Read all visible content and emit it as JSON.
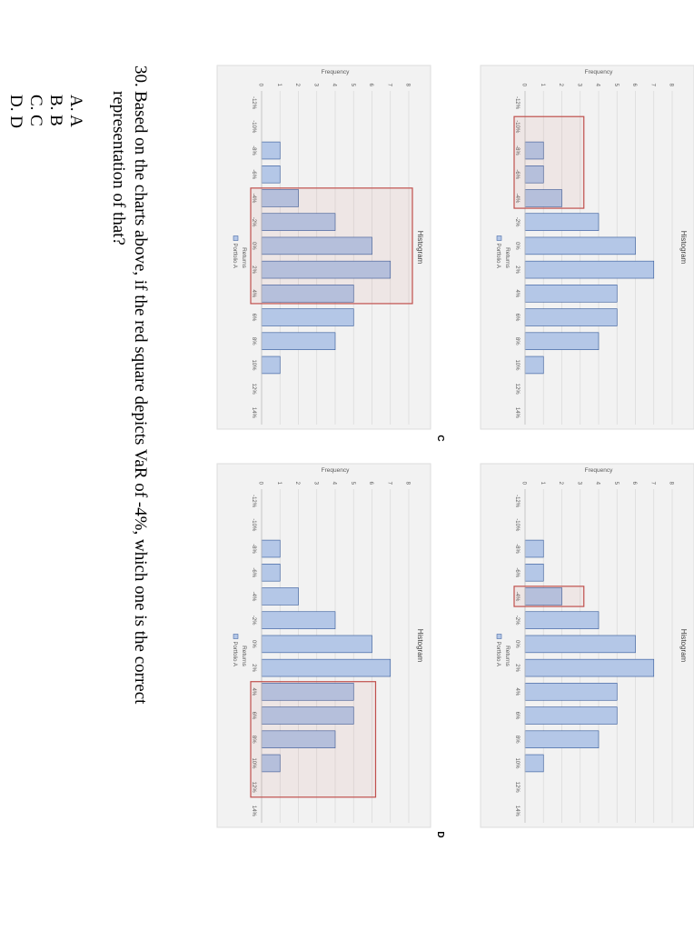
{
  "colors": {
    "bar_fill": "#b4c7e7",
    "bar_stroke": "#2f5597",
    "highlight": "#c0504d",
    "panel_bg": "#f2f2f2",
    "grid": "#d9d9d9"
  },
  "panel_captions": [
    "C",
    "D"
  ],
  "chart_data": [
    {
      "id": "A",
      "type": "bar",
      "title": "Histogram",
      "xlabel": "Returns",
      "ylabel": "Frequency",
      "categories": [
        "-12%",
        "-10%",
        "-8%",
        "-6%",
        "-4%",
        "-2%",
        "0%",
        "2%",
        "4%",
        "6%",
        "8%",
        "10%",
        "12%",
        "14%"
      ],
      "series": [
        {
          "name": "Portfolio A",
          "values": [
            0,
            0,
            1,
            1,
            2,
            4,
            6,
            7,
            5,
            5,
            4,
            1,
            0,
            0
          ]
        }
      ],
      "ylim": [
        0,
        8
      ],
      "yticks": [
        0,
        1,
        2,
        3,
        4,
        5,
        6,
        7,
        8
      ],
      "legend": "Portfolio A",
      "highlight_categories": [
        "-10%",
        "-8%",
        "-6%",
        "-4%"
      ]
    },
    {
      "id": "B",
      "type": "bar",
      "title": "Histogram",
      "xlabel": "Returns",
      "ylabel": "Frequency",
      "categories": [
        "-12%",
        "-10%",
        "-8%",
        "-6%",
        "-4%",
        "-2%",
        "0%",
        "2%",
        "4%",
        "6%",
        "8%",
        "10%",
        "12%",
        "14%"
      ],
      "series": [
        {
          "name": "Portfolio A",
          "values": [
            0,
            0,
            1,
            1,
            2,
            4,
            6,
            7,
            5,
            5,
            4,
            1,
            0,
            0
          ]
        }
      ],
      "ylim": [
        0,
        8
      ],
      "yticks": [
        0,
        1,
        2,
        3,
        4,
        5,
        6,
        7,
        8
      ],
      "legend": "Portfolio A",
      "highlight_categories": [
        "-4%"
      ]
    },
    {
      "id": "C",
      "type": "bar",
      "title": "Histogram",
      "xlabel": "Returns",
      "ylabel": "Frequency",
      "categories": [
        "-12%",
        "-10%",
        "-8%",
        "-6%",
        "-4%",
        "-2%",
        "0%",
        "2%",
        "4%",
        "6%",
        "8%",
        "10%",
        "12%",
        "14%"
      ],
      "series": [
        {
          "name": "Portfolio A",
          "values": [
            0,
            0,
            1,
            1,
            2,
            4,
            6,
            7,
            5,
            5,
            4,
            1,
            0,
            0
          ]
        }
      ],
      "ylim": [
        0,
        8
      ],
      "yticks": [
        0,
        1,
        2,
        3,
        4,
        5,
        6,
        7,
        8
      ],
      "legend": "Portfolio A",
      "highlight_categories": [
        "-4%",
        "-2%",
        "0%",
        "2%",
        "4%"
      ]
    },
    {
      "id": "D",
      "type": "bar",
      "title": "Histogram",
      "xlabel": "Returns",
      "ylabel": "Frequency",
      "categories": [
        "-12%",
        "-10%",
        "-8%",
        "-6%",
        "-4%",
        "-2%",
        "0%",
        "2%",
        "4%",
        "6%",
        "8%",
        "10%",
        "12%",
        "14%"
      ],
      "series": [
        {
          "name": "Portfolio A",
          "values": [
            0,
            0,
            1,
            1,
            2,
            4,
            6,
            7,
            5,
            5,
            4,
            1,
            0,
            0
          ]
        }
      ],
      "ylim": [
        0,
        8
      ],
      "yticks": [
        0,
        1,
        2,
        3,
        4,
        5,
        6,
        7,
        8
      ],
      "legend": "Portfolio A",
      "highlight_categories": [
        "4%",
        "6%",
        "8%",
        "10%",
        "12%"
      ]
    }
  ],
  "question": {
    "number": "30.",
    "line1": "Based on the charts above, if the red square depicts VaR of -4%, which one is the correct",
    "line2": "representation of that?"
  },
  "options": [
    "A. A",
    "B. B",
    "C. C",
    "D. D"
  ]
}
